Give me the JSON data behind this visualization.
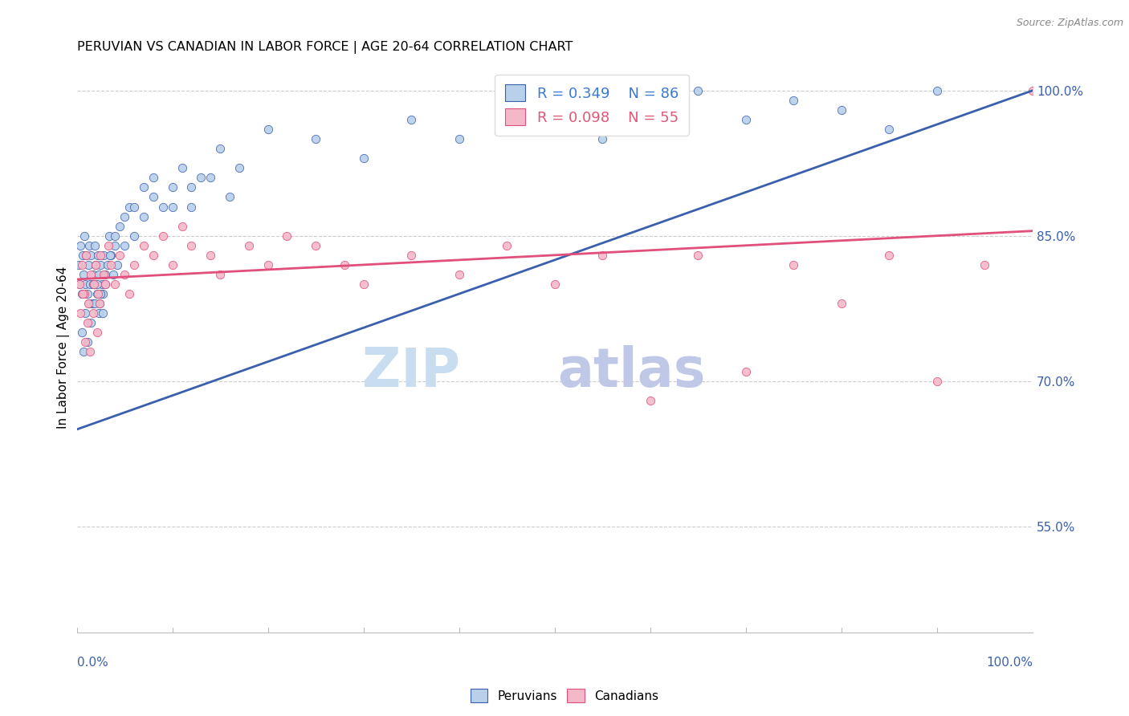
{
  "title": "PERUVIAN VS CANADIAN IN LABOR FORCE | AGE 20-64 CORRELATION CHART",
  "source": "Source: ZipAtlas.com",
  "ylabel": "In Labor Force | Age 20-64",
  "right_yticks": [
    55.0,
    70.0,
    85.0,
    100.0
  ],
  "blue_R": 0.349,
  "blue_N": 86,
  "pink_R": 0.098,
  "pink_N": 55,
  "peruvian_color": "#b8d0ea",
  "canadian_color": "#f5b8c8",
  "trend_blue": "#3a5fad",
  "trend_pink": "#e0507a",
  "legend_text_blue": "#3a7ad4",
  "legend_text_pink": "#e05878",
  "blue_scatter_x": [
    0.2,
    0.3,
    0.4,
    0.5,
    0.6,
    0.7,
    0.8,
    0.9,
    1.0,
    1.1,
    1.2,
    1.3,
    1.4,
    1.5,
    1.6,
    1.7,
    1.8,
    1.9,
    2.0,
    2.1,
    2.2,
    2.3,
    2.4,
    2.5,
    2.6,
    2.7,
    2.8,
    2.9,
    3.0,
    3.2,
    3.4,
    3.6,
    3.8,
    4.0,
    4.2,
    4.5,
    5.0,
    5.5,
    6.0,
    7.0,
    8.0,
    9.0,
    10.0,
    11.0,
    12.0,
    13.0,
    15.0,
    17.0,
    20.0,
    25.0,
    30.0,
    35.0,
    40.0,
    45.0,
    50.0,
    55.0,
    60.0,
    65.0,
    70.0,
    75.0,
    80.0,
    85.0,
    90.0,
    0.5,
    0.7,
    0.9,
    1.1,
    1.3,
    1.5,
    1.7,
    1.9,
    2.1,
    2.3,
    2.5,
    2.7,
    3.0,
    3.5,
    4.0,
    5.0,
    6.0,
    7.0,
    8.0,
    10.0,
    12.0,
    14.0,
    16.0
  ],
  "blue_scatter_y": [
    82,
    80,
    84,
    79,
    83,
    81,
    85,
    80,
    83,
    79,
    82,
    84,
    80,
    83,
    78,
    81,
    80,
    84,
    82,
    79,
    83,
    81,
    78,
    82,
    80,
    79,
    83,
    81,
    80,
    82,
    85,
    83,
    81,
    84,
    82,
    86,
    84,
    88,
    85,
    87,
    89,
    88,
    90,
    92,
    88,
    91,
    94,
    92,
    96,
    95,
    93,
    97,
    95,
    98,
    97,
    95,
    98,
    100,
    97,
    99,
    98,
    96,
    100,
    75,
    73,
    77,
    74,
    78,
    76,
    80,
    78,
    80,
    77,
    79,
    77,
    81,
    83,
    85,
    87,
    88,
    90,
    91,
    88,
    90,
    91,
    89
  ],
  "canadian_scatter_x": [
    0.3,
    0.5,
    0.8,
    1.0,
    1.2,
    1.5,
    1.8,
    2.0,
    2.2,
    2.5,
    2.8,
    3.0,
    3.3,
    3.6,
    4.0,
    4.5,
    5.0,
    5.5,
    6.0,
    7.0,
    8.0,
    9.0,
    10.0,
    11.0,
    12.0,
    14.0,
    15.0,
    18.0,
    20.0,
    22.0,
    25.0,
    28.0,
    30.0,
    35.0,
    40.0,
    45.0,
    50.0,
    55.0,
    60.0,
    65.0,
    70.0,
    75.0,
    80.0,
    85.0,
    90.0,
    95.0,
    100.0,
    0.4,
    0.6,
    0.9,
    1.1,
    1.4,
    1.7,
    2.1,
    2.4
  ],
  "canadian_scatter_y": [
    80,
    82,
    79,
    83,
    78,
    81,
    80,
    82,
    79,
    83,
    81,
    80,
    84,
    82,
    80,
    83,
    81,
    79,
    82,
    84,
    83,
    85,
    82,
    86,
    84,
    83,
    81,
    84,
    82,
    85,
    84,
    82,
    80,
    83,
    81,
    84,
    80,
    83,
    68,
    83,
    71,
    82,
    78,
    83,
    70,
    82,
    100,
    77,
    79,
    74,
    76,
    73,
    77,
    75,
    78
  ],
  "blue_trend_x": [
    0,
    100
  ],
  "blue_trend_y": [
    65.0,
    100.0
  ],
  "pink_trend_x": [
    0,
    100
  ],
  "pink_trend_y": [
    80.5,
    85.5
  ],
  "ylim_min": 44,
  "ylim_max": 103,
  "xlim_min": 0,
  "xlim_max": 100,
  "watermark_zip_color": "#c8ddf0",
  "watermark_atlas_color": "#c0c8e8",
  "figsize": [
    14.06,
    8.92
  ],
  "dpi": 100
}
